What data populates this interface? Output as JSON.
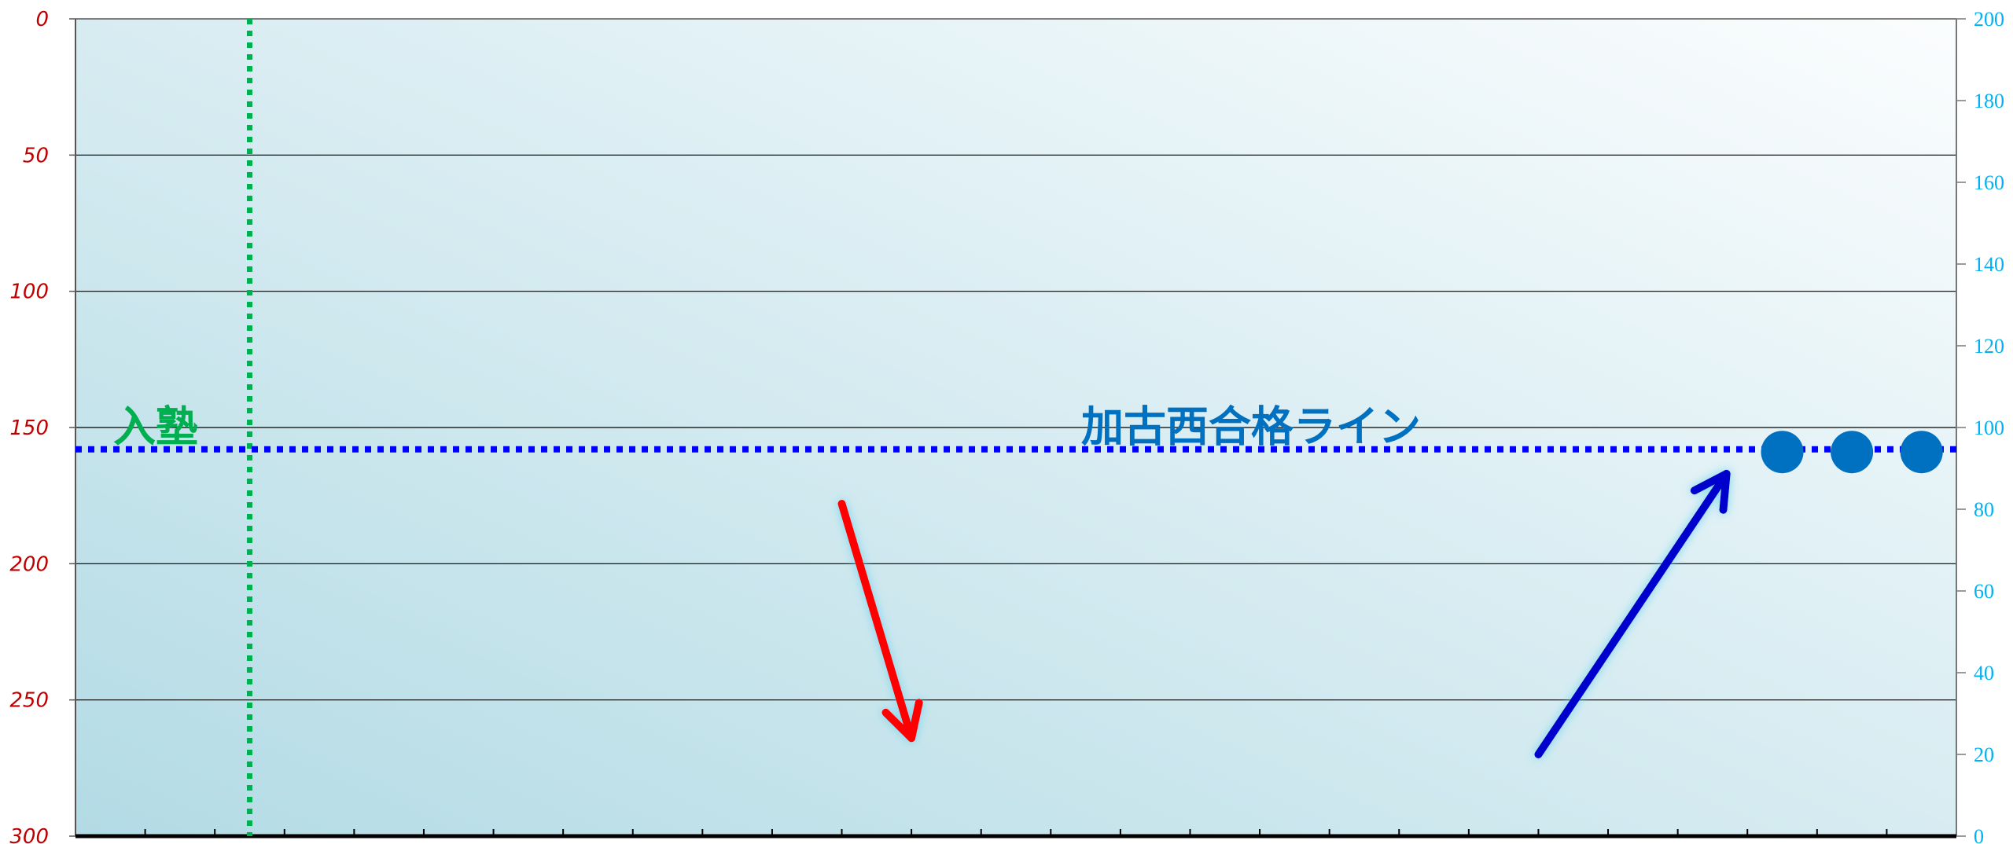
{
  "colors": {
    "left_axis_tick": "#c00000",
    "right_axis_tick": "#00b0f0",
    "gridline": "#000000",
    "pass_line": "#0000ff",
    "pass_label": "#0070c0",
    "entry_line": "#00b050",
    "entry_label": "#00b050",
    "points": "#0070c0",
    "arrow_down": "#ff0000",
    "arrow_up": "#0000cc",
    "bg_top_right": "#fbfdfe",
    "bg_bottom_left": "#b3dbe5"
  },
  "chart_data": {
    "type": "line",
    "title": "",
    "xlabel": "",
    "ylabel": "",
    "x_categories_count": 27,
    "y_left": {
      "min": 0,
      "max": 300,
      "reversed": true,
      "ticks": [
        0,
        50,
        100,
        150,
        200,
        250,
        300
      ]
    },
    "y_right": {
      "min": 0,
      "max": 200,
      "ticks": [
        0,
        20,
        40,
        60,
        80,
        100,
        120,
        140,
        160,
        180,
        200
      ]
    },
    "grid": true,
    "series": [
      {
        "axis": "left",
        "values": [
          null,
          null,
          null,
          null,
          null,
          null,
          null,
          null,
          null,
          null,
          null,
          null,
          null,
          null,
          null,
          null,
          null,
          null,
          null,
          null,
          null,
          null,
          null,
          null,
          159,
          159,
          159
        ]
      }
    ],
    "annotations": {
      "pass_line": {
        "text": "加古西合格ライン",
        "value_left_axis": 158
      },
      "entry_line": {
        "text": "入塾",
        "category_index": 2
      },
      "arrows": [
        {
          "name": "down",
          "from": [
            10.5,
            178
          ],
          "to": [
            11.5,
            264
          ]
        },
        {
          "name": "up",
          "from": [
            20.5,
            270
          ],
          "to": [
            23.2,
            167
          ]
        }
      ]
    }
  }
}
